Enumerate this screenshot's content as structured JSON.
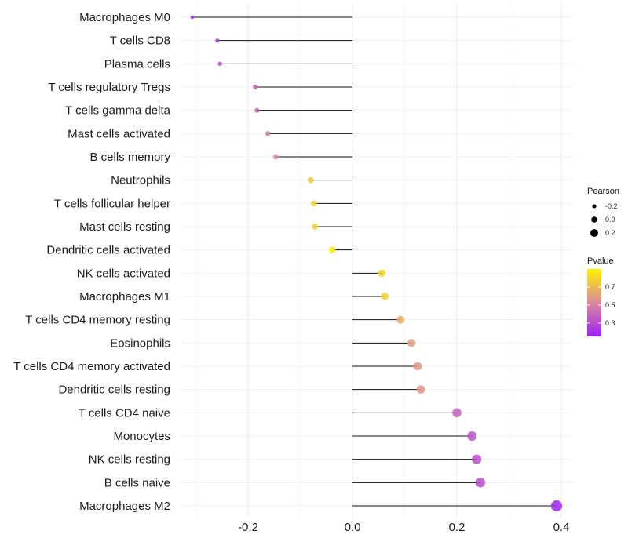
{
  "chart_data": {
    "type": "lollipop",
    "title": "",
    "xlabel": "",
    "ylabel": "",
    "xlim": [
      -0.32,
      0.42
    ],
    "xticks": [
      "-0.2",
      "0.0",
      "0.2",
      "0.4"
    ],
    "xtick_values": [
      -0.2,
      0.0,
      0.2,
      0.4
    ],
    "grid": true,
    "categories": [
      "Macrophages M0",
      "T cells CD8",
      "Plasma cells",
      "T cells regulatory  Tregs",
      "T cells gamma delta",
      "Mast cells activated",
      "B cells memory",
      "Neutrophils",
      "T cells follicular helper",
      "Mast cells resting",
      "Dendritic cells activated",
      "NK cells activated",
      "Macrophages M1",
      "T cells CD4 memory resting",
      "Eosinophils",
      "T cells CD4 memory activated",
      "Dendritic cells resting",
      "T cells CD4 naive",
      "Monocytes",
      "NK cells resting",
      "B cells naive",
      "Macrophages M2"
    ],
    "pearson": [
      -0.307,
      -0.259,
      -0.254,
      -0.186,
      -0.183,
      -0.162,
      -0.147,
      -0.08,
      -0.074,
      -0.072,
      -0.039,
      0.056,
      0.062,
      0.092,
      0.113,
      0.125,
      0.131,
      0.2,
      0.229,
      0.238,
      0.245,
      0.391
    ],
    "pvalue": [
      0.17,
      0.25,
      0.27,
      0.4,
      0.41,
      0.47,
      0.52,
      0.76,
      0.77,
      0.78,
      0.89,
      0.8,
      0.78,
      0.65,
      0.6,
      0.58,
      0.57,
      0.38,
      0.33,
      0.32,
      0.3,
      0.16
    ],
    "legend": {
      "placement": "right",
      "size_title": "Pearson",
      "size_labels": [
        "-0.2",
        "0.0",
        "0.2"
      ],
      "size_values": [
        -0.2,
        0.0,
        0.2
      ],
      "color_title": "Pvalue",
      "color_labels": [
        "0.7",
        "0.5",
        "0.3"
      ],
      "color_values": [
        0.7,
        0.5,
        0.3
      ],
      "color_range": [
        0.15,
        0.9
      ],
      "colors": {
        "low": "#A020F0",
        "mid": "#D98A9C",
        "high": "#FFF200"
      }
    }
  }
}
